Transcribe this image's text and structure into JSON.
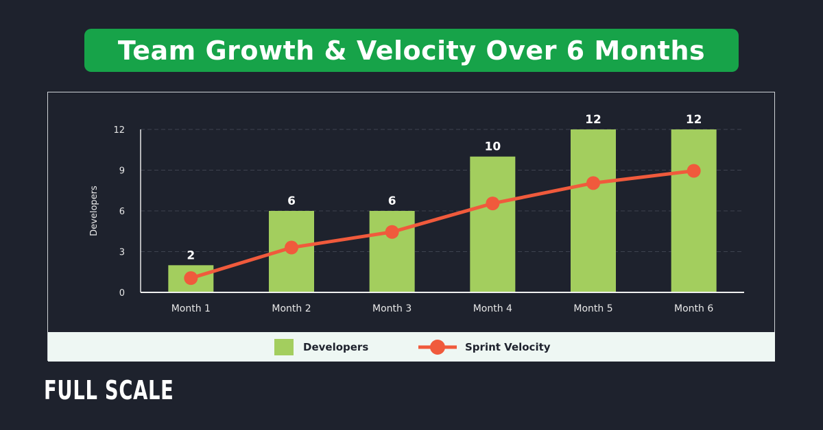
{
  "title": "Team Growth & Velocity Over 6 Months",
  "logo": "FULL SCALE",
  "chart_data": {
    "type": "bar",
    "title": "Team Growth & Velocity Over 6 Months",
    "categories": [
      "Month 1",
      "Month 2",
      "Month 3",
      "Month 4",
      "Month 5",
      "Month 6"
    ],
    "ylabel": "Developers",
    "ylim": [
      0,
      12
    ],
    "yticks": [
      0,
      3,
      6,
      9,
      12
    ],
    "grid": true,
    "legend_placement": "bottom",
    "series": [
      {
        "name": "Developers",
        "type": "bar",
        "values": [
          2,
          6,
          6,
          10,
          12,
          12
        ],
        "color": "#a3ce5e",
        "data_labels": [
          "2",
          "6",
          "6",
          "10",
          "12",
          "12"
        ]
      },
      {
        "name": "Sprint Velocity",
        "type": "line",
        "values": [
          1.05,
          3.3,
          4.45,
          6.55,
          8.05,
          8.95
        ],
        "color": "#f05a3c"
      }
    ]
  }
}
